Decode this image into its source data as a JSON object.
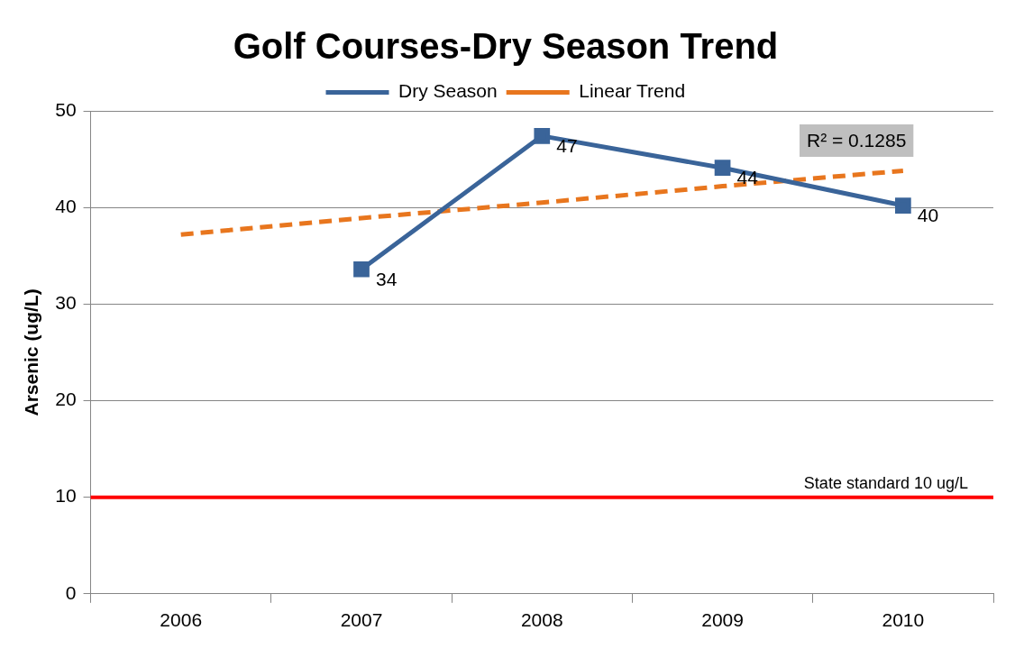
{
  "chart_data": {
    "type": "line",
    "title": "Golf Courses-Dry Season Trend",
    "ylabel": "Arsenic (ug/L)",
    "categories": [
      "2006",
      "2007",
      "2008",
      "2009",
      "2010"
    ],
    "series": [
      {
        "name": "Dry Season",
        "color": "#3a6499",
        "values": [
          null,
          33.6,
          47.4,
          44.1,
          40.2
        ],
        "value_labels": [
          null,
          "34",
          "47",
          "44",
          "40"
        ],
        "marker": "square",
        "line_style": "solid"
      },
      {
        "name": "Linear Trend",
        "color": "#e8761e",
        "values": [
          37.2,
          38.9,
          40.5,
          42.2,
          43.8
        ],
        "marker": "none",
        "line_style": "dashed"
      }
    ],
    "ylim": [
      0,
      50
    ],
    "yticks": [
      0,
      10,
      20,
      30,
      40,
      50
    ],
    "grid": "y",
    "legend": "top",
    "ref_lines": [
      {
        "axis": "y",
        "value": 10,
        "label": "State standard 10 ug/L",
        "color": "#ff0000"
      }
    ],
    "annotations": [
      "R² = 0.1285"
    ]
  }
}
